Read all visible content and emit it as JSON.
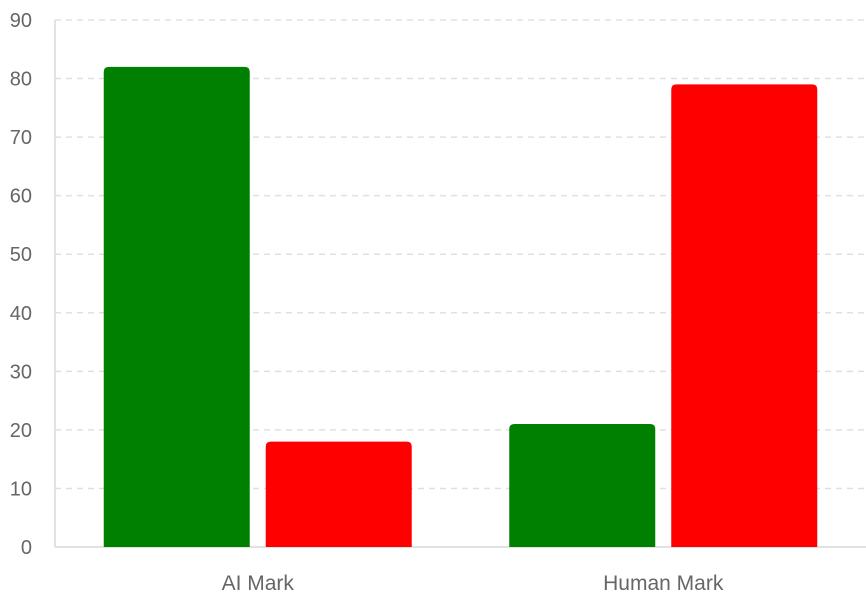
{
  "chart_data": {
    "type": "bar",
    "categories": [
      "AI Mark",
      "Human Mark"
    ],
    "series": [
      {
        "values": [
          82,
          21
        ],
        "color": "#008000"
      },
      {
        "values": [
          18,
          79
        ],
        "color": "#ff0000"
      }
    ],
    "ylim": [
      0,
      90
    ],
    "yticks": [
      "0",
      "10",
      "20",
      "30",
      "40",
      "50",
      "60",
      "70",
      "80",
      "90"
    ],
    "grid": true,
    "title": "",
    "xlabel": "",
    "ylabel": ""
  }
}
